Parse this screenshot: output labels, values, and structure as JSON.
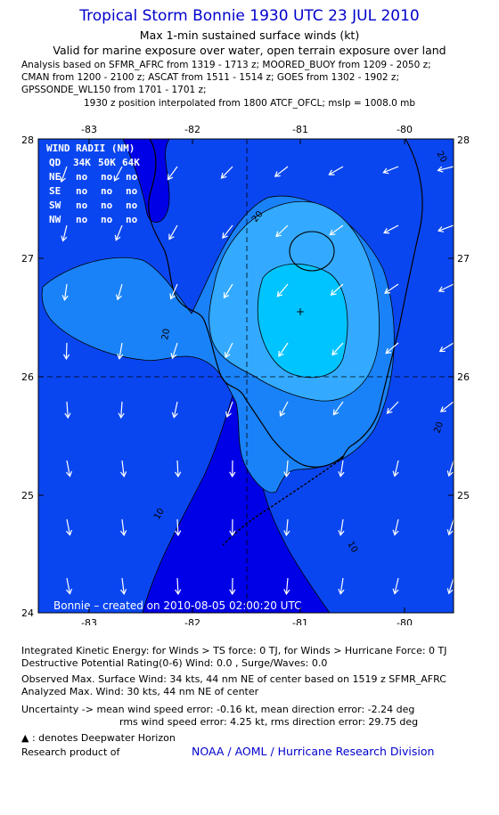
{
  "header": {
    "title": "Tropical Storm Bonnie 1930 UTC 23 JUL 2010",
    "subtitle": "Max 1-min sustained surface winds (kt)",
    "validity": "Valid for marine exposure over water, open terrain exposure over land",
    "analysis_lines": [
      "Analysis based on SFMR_AFRC from 1319 - 1713 z; MOORED_BUOY from 1209 - 2050 z;",
      "CMAN from 1200 - 2100 z; ASCAT from 1511 - 1514 z; GOES from 1302 - 1902 z;",
      "GPSSONDE_WL150 from 1701 - 1701 z;"
    ],
    "position_note": "1930 z position interpolated from 1800 ATCF_OFCL; mslp = 1008.0 mb"
  },
  "map": {
    "lon_ticks": [
      "-83",
      "-82",
      "-81",
      "-80"
    ],
    "lat_ticks": [
      "28",
      "27",
      "26",
      "25",
      "24"
    ],
    "lon_range": [
      -83.75,
      -79.75
    ],
    "lat_range": [
      24,
      28
    ],
    "center": {
      "lon": -81.0,
      "lat": 26.55
    },
    "contour_labels": [
      "20",
      "20",
      "20",
      "20",
      "10",
      "10"
    ],
    "credit_text": "Bonnie  –  created on 2010-08-05 02:00:20 UTC",
    "colors": {
      "lt0": "#0000e6",
      "lt10": "#0a46f0",
      "lt20": "#1a82f8",
      "lt25": "#33aaff",
      "lt30": "#00c4ff"
    }
  },
  "wind_radii": {
    "title": "WIND RADII (NM)",
    "header": [
      "QD",
      "34K",
      "50K",
      "64K"
    ],
    "rows": [
      [
        "NE",
        "no",
        "no",
        "no"
      ],
      [
        "SE",
        "no",
        "no",
        "no"
      ],
      [
        "SW",
        "no",
        "no",
        "no"
      ],
      [
        "NW",
        "no",
        "no",
        "no"
      ]
    ]
  },
  "footer": {
    "ike": "Integrated Kinetic Energy:  for Winds > TS force: 0 TJ,  for Winds > Hurricane Force: 0 TJ",
    "dpr": "Destructive Potential Rating(0-6)   Wind: 0.0 , Surge/Waves: 0.0",
    "obs_max": "Observed Max. Surface Wind: 34 kts, 44 nm NE of center based on 1519 z SFMR_AFRC",
    "analyzed_max": "Analyzed Max. Wind: 30 kts, 44 nm NE of center",
    "uncertainty1": "Uncertainty -> mean wind speed error:  -0.16 kt,    mean direction error:  -2.24 deg",
    "uncertainty2": "rms wind speed error: 4.25 kt,   rms direction error: 29.75 deg",
    "deepwater": ": denotes Deepwater Horizon",
    "research": "Research product of",
    "credit": "NOAA / AOML / Hurricane Research Division"
  }
}
